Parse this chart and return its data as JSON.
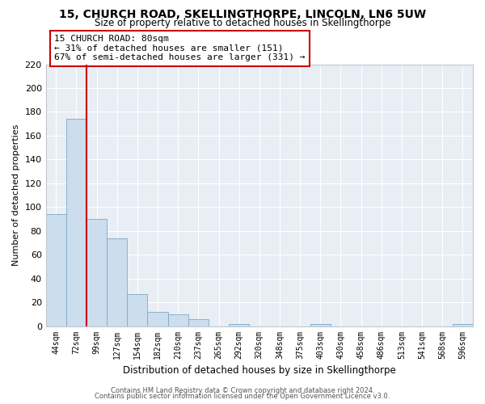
{
  "title": "15, CHURCH ROAD, SKELLINGTHORPE, LINCOLN, LN6 5UW",
  "subtitle": "Size of property relative to detached houses in Skellingthorpe",
  "xlabel": "Distribution of detached houses by size in Skellingthorpe",
  "ylabel": "Number of detached properties",
  "bar_color": "#ccdded",
  "bar_edge_color": "#7aaac8",
  "x_labels": [
    "44sqm",
    "72sqm",
    "99sqm",
    "127sqm",
    "154sqm",
    "182sqm",
    "210sqm",
    "237sqm",
    "265sqm",
    "292sqm",
    "320sqm",
    "348sqm",
    "375sqm",
    "403sqm",
    "430sqm",
    "458sqm",
    "486sqm",
    "513sqm",
    "541sqm",
    "568sqm",
    "596sqm"
  ],
  "bar_values": [
    94,
    174,
    90,
    74,
    27,
    12,
    10,
    6,
    0,
    2,
    0,
    0,
    0,
    2,
    0,
    0,
    0,
    0,
    0,
    0,
    2
  ],
  "ylim": [
    0,
    220
  ],
  "yticks": [
    0,
    20,
    40,
    60,
    80,
    100,
    120,
    140,
    160,
    180,
    200,
    220
  ],
  "vline_x_index": 1,
  "vline_color": "#cc0000",
  "annotation_line1": "15 CHURCH ROAD: 80sqm",
  "annotation_line2": "← 31% of detached houses are smaller (151)",
  "annotation_line3": "67% of semi-detached houses are larger (331) →",
  "annotation_box_color": "#cc0000",
  "footer_line1": "Contains HM Land Registry data © Crown copyright and database right 2024.",
  "footer_line2": "Contains public sector information licensed under the Open Government Licence v3.0.",
  "axes_bg_color": "#e8eef4",
  "fig_bg_color": "#ffffff",
  "grid_color": "#ffffff",
  "spine_color": "#c0c8d0"
}
